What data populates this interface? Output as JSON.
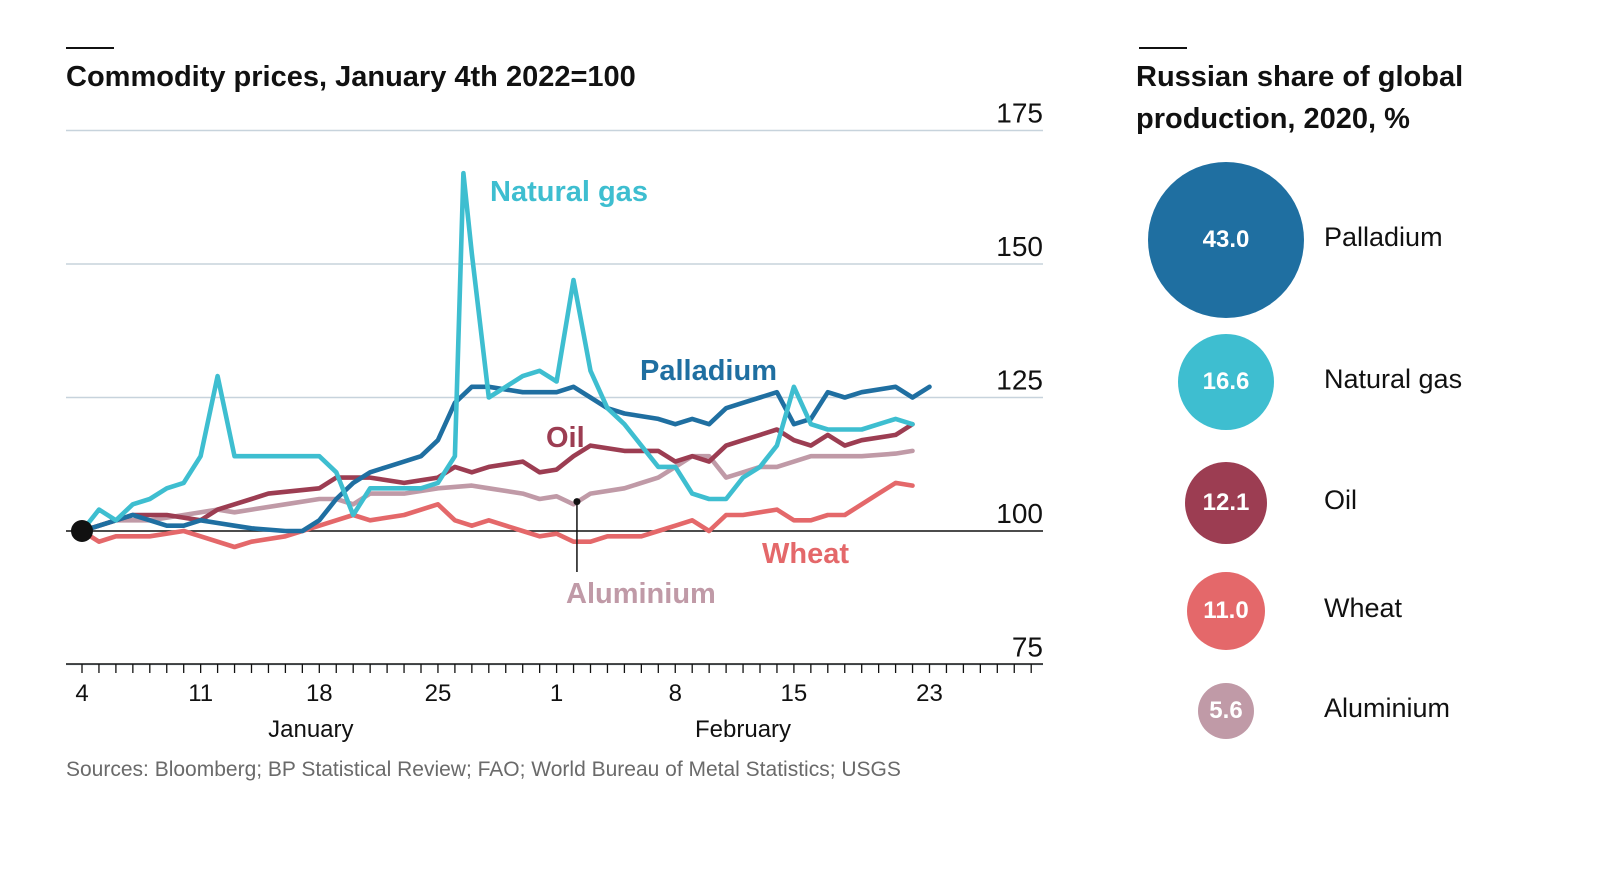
{
  "left_title": "Commodity prices, January 4th 2022=100",
  "right_title": "Russian share of global production, 2020, %",
  "source": "Sources: Bloomberg; BP Statistical Review; FAO; World Bureau of Metal Statistics; USGS",
  "chart_data": [
    {
      "type": "line",
      "title": "Commodity prices, January 4th 2022=100",
      "ylim": [
        75,
        175
      ],
      "yticks": [
        "175",
        "150",
        "125",
        "100",
        "75"
      ],
      "baseline": 100,
      "xticks": [
        "4",
        "11",
        "18",
        "25",
        "1",
        "8",
        "15",
        "23"
      ],
      "month_labels": [
        "January",
        "February"
      ],
      "x": [
        4,
        5,
        6,
        7,
        8,
        9,
        10,
        11,
        12,
        13,
        14,
        15,
        16,
        17,
        18,
        19,
        20,
        21,
        22,
        23,
        24,
        25,
        26,
        27,
        28,
        29,
        30,
        31,
        32,
        33,
        34,
        35,
        36,
        37,
        38,
        39,
        40,
        41,
        42,
        43,
        44,
        45,
        46,
        47,
        48,
        49,
        50,
        51,
        52,
        53,
        54
      ],
      "x_note_dates": "day of year 2022: 1-31 January, 32-54 February",
      "colors": {
        "Natural gas": "#3ebed0",
        "Palladium": "#1f6fa1",
        "Oil": "#9c3d52",
        "Wheat": "#e4686a",
        "Aluminium": "#c09aa7"
      },
      "series": [
        {
          "name": "Aluminium",
          "points": [
            [
              4,
              100
            ],
            [
              5,
              101
            ],
            [
              6,
              102
            ],
            [
              8,
              102
            ],
            [
              10,
              103
            ],
            [
              12,
              104
            ],
            [
              13,
              103.5
            ],
            [
              14,
              104
            ],
            [
              16,
              105
            ],
            [
              18,
              106
            ],
            [
              19,
              106
            ],
            [
              20,
              105
            ],
            [
              21,
              107
            ],
            [
              23,
              107
            ],
            [
              25,
              108
            ],
            [
              27,
              108.5
            ],
            [
              28,
              108
            ],
            [
              30,
              107
            ],
            [
              31,
              106
            ],
            [
              32,
              106.5
            ],
            [
              33,
              105
            ],
            [
              34,
              107
            ],
            [
              36,
              108
            ],
            [
              38,
              110
            ],
            [
              39,
              112
            ],
            [
              40,
              114
            ],
            [
              41,
              114
            ],
            [
              42,
              110
            ],
            [
              43,
              111
            ],
            [
              44,
              112
            ],
            [
              45,
              112
            ],
            [
              46,
              113
            ],
            [
              47,
              114
            ],
            [
              48,
              114
            ],
            [
              50,
              114
            ],
            [
              52,
              114.5
            ],
            [
              53,
              115
            ]
          ]
        },
        {
          "name": "Wheat",
          "points": [
            [
              4,
              100
            ],
            [
              5,
              98
            ],
            [
              6,
              99
            ],
            [
              8,
              99
            ],
            [
              10,
              100
            ],
            [
              11,
              99
            ],
            [
              13,
              97
            ],
            [
              14,
              98
            ],
            [
              16,
              99
            ],
            [
              18,
              101
            ],
            [
              19,
              102
            ],
            [
              20,
              103
            ],
            [
              21,
              102
            ],
            [
              23,
              103
            ],
            [
              25,
              105
            ],
            [
              26,
              102
            ],
            [
              27,
              101
            ],
            [
              28,
              102
            ],
            [
              30,
              100
            ],
            [
              31,
              99
            ],
            [
              32,
              99.5
            ],
            [
              33,
              98
            ],
            [
              34,
              98
            ],
            [
              35,
              99
            ],
            [
              37,
              99
            ],
            [
              38,
              100
            ],
            [
              39,
              101
            ],
            [
              40,
              102
            ],
            [
              41,
              100
            ],
            [
              42,
              103
            ],
            [
              43,
              103
            ],
            [
              45,
              104
            ],
            [
              46,
              102
            ],
            [
              47,
              102
            ],
            [
              48,
              103
            ],
            [
              49,
              103
            ],
            [
              50,
              105
            ],
            [
              51,
              107
            ],
            [
              52,
              109
            ],
            [
              53,
              108.5
            ]
          ]
        },
        {
          "name": "Oil",
          "points": [
            [
              4,
              100
            ],
            [
              5,
              101
            ],
            [
              6,
              102
            ],
            [
              7,
              103
            ],
            [
              9,
              103
            ],
            [
              11,
              102
            ],
            [
              12,
              104
            ],
            [
              13,
              105
            ],
            [
              14,
              106
            ],
            [
              15,
              107
            ],
            [
              18,
              108
            ],
            [
              19,
              110
            ],
            [
              20,
              110
            ],
            [
              21,
              110
            ],
            [
              23,
              109
            ],
            [
              25,
              110
            ],
            [
              26,
              112
            ],
            [
              27,
              111
            ],
            [
              28,
              112
            ],
            [
              30,
              113
            ],
            [
              31,
              111
            ],
            [
              32,
              111.5
            ],
            [
              33,
              114
            ],
            [
              34,
              116
            ],
            [
              36,
              115
            ],
            [
              37,
              115
            ],
            [
              38,
              115
            ],
            [
              39,
              113
            ],
            [
              40,
              114
            ],
            [
              41,
              113
            ],
            [
              42,
              116
            ],
            [
              43,
              117
            ],
            [
              44,
              118
            ],
            [
              45,
              119
            ],
            [
              46,
              117
            ],
            [
              47,
              116
            ],
            [
              48,
              118
            ],
            [
              49,
              116
            ],
            [
              50,
              117
            ],
            [
              52,
              118
            ],
            [
              53,
              120
            ]
          ]
        },
        {
          "name": "Palladium",
          "points": [
            [
              4,
              100
            ],
            [
              5,
              101
            ],
            [
              6,
              102
            ],
            [
              7,
              103
            ],
            [
              8,
              102
            ],
            [
              9,
              101
            ],
            [
              10,
              101
            ],
            [
              11,
              102
            ],
            [
              12,
              101.5
            ],
            [
              13,
              101
            ],
            [
              14,
              100.5
            ],
            [
              16,
              100
            ],
            [
              17,
              100
            ],
            [
              18,
              102
            ],
            [
              19,
              106
            ],
            [
              20,
              109
            ],
            [
              21,
              111
            ],
            [
              22,
              112
            ],
            [
              23,
              113
            ],
            [
              24,
              114
            ],
            [
              25,
              117
            ],
            [
              26,
              124
            ],
            [
              27,
              127
            ],
            [
              28,
              127
            ],
            [
              30,
              126
            ],
            [
              31,
              126
            ],
            [
              32,
              126
            ],
            [
              33,
              127
            ],
            [
              34,
              125
            ],
            [
              35,
              123
            ],
            [
              36,
              122
            ],
            [
              38,
              121
            ],
            [
              39,
              120
            ],
            [
              40,
              121
            ],
            [
              41,
              120
            ],
            [
              42,
              123
            ],
            [
              43,
              124
            ],
            [
              44,
              125
            ],
            [
              45,
              126
            ],
            [
              46,
              120
            ],
            [
              47,
              121
            ],
            [
              48,
              126
            ],
            [
              49,
              125
            ],
            [
              50,
              126
            ],
            [
              52,
              127
            ],
            [
              53,
              125
            ],
            [
              54,
              127
            ]
          ]
        },
        {
          "name": "Natural gas",
          "points": [
            [
              4,
              100
            ],
            [
              5,
              104
            ],
            [
              6,
              102
            ],
            [
              7,
              105
            ],
            [
              8,
              106
            ],
            [
              9,
              108
            ],
            [
              10,
              109
            ],
            [
              11,
              114
            ],
            [
              12,
              129
            ],
            [
              13,
              114
            ],
            [
              14,
              114
            ],
            [
              15,
              114
            ],
            [
              16,
              114
            ],
            [
              17,
              114
            ],
            [
              18,
              114
            ],
            [
              19,
              111
            ],
            [
              20,
              103
            ],
            [
              21,
              108
            ],
            [
              22,
              108
            ],
            [
              23,
              108
            ],
            [
              24,
              108
            ],
            [
              25,
              109
            ],
            [
              26,
              114
            ],
            [
              26.5,
              167
            ],
            [
              27,
              152
            ],
            [
              28,
              125
            ],
            [
              29,
              127
            ],
            [
              30,
              129
            ],
            [
              31,
              130
            ],
            [
              32,
              128
            ],
            [
              33,
              147
            ],
            [
              34,
              130
            ],
            [
              35,
              123
            ],
            [
              36,
              120
            ],
            [
              38,
              112
            ],
            [
              39,
              112
            ],
            [
              40,
              107
            ],
            [
              41,
              106
            ],
            [
              42,
              106
            ],
            [
              43,
              110
            ],
            [
              44,
              112
            ],
            [
              45,
              116
            ],
            [
              46,
              127
            ],
            [
              47,
              120
            ],
            [
              48,
              119
            ],
            [
              50,
              119
            ],
            [
              52,
              121
            ],
            [
              53,
              120
            ]
          ]
        }
      ],
      "annotations": [
        "Natural gas",
        "Palladium",
        "Oil",
        "Wheat",
        "Aluminium"
      ]
    },
    {
      "type": "bubble",
      "title": "Russian share of global production, 2020, %",
      "items": [
        {
          "name": "Palladium",
          "value": 43.0,
          "label": "43.0",
          "color": "#1f6fa1"
        },
        {
          "name": "Natural gas",
          "value": 16.6,
          "label": "16.6",
          "color": "#3ebed0"
        },
        {
          "name": "Oil",
          "value": 12.1,
          "label": "12.1",
          "color": "#9c3d52"
        },
        {
          "name": "Wheat",
          "value": 11.0,
          "label": "11.0",
          "color": "#e4686a"
        },
        {
          "name": "Aluminium",
          "value": 5.6,
          "label": "5.6",
          "color": "#c09aa7"
        }
      ]
    }
  ]
}
